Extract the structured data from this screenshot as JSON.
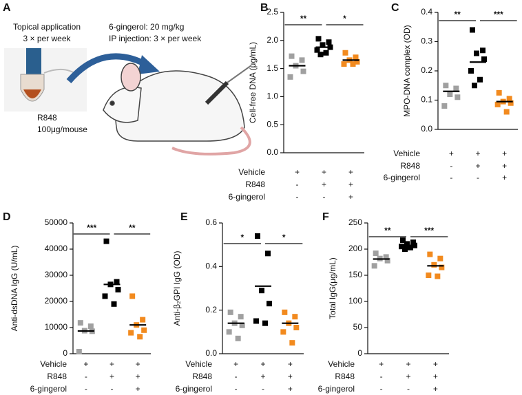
{
  "illustration": {
    "panel": "A",
    "topical": "Topical application",
    "topical_freq": "3 × per week",
    "dose": "6-gingerol: 20 mg/kg",
    "injection": "IP injection: 3 × per week",
    "drug": "R848",
    "drug_dose": "100μg/mouse"
  },
  "chart_data": [
    {
      "type": "dotplot",
      "panel": "B",
      "y_label": "Cell-free DNA (μg/mL)",
      "conditions": [
        {
          "label": "Vehicle",
          "signs": [
            "+",
            "+",
            "+"
          ]
        },
        {
          "label": "R848",
          "signs": [
            "-",
            "+",
            "+"
          ]
        },
        {
          "label": "6-gingerol",
          "signs": [
            "-",
            "-",
            "+"
          ]
        }
      ],
      "series": [
        {
          "color": "#a0a0a0",
          "values": [
            1.72,
            1.65,
            1.55,
            1.45,
            1.35
          ],
          "mean": 1.55
        },
        {
          "color": "#000000",
          "values": [
            2.03,
            1.97,
            1.92,
            1.88,
            1.83,
            1.78,
            1.75
          ],
          "mean": 1.88
        },
        {
          "color": "#f28a1e",
          "values": [
            1.78,
            1.7,
            1.65,
            1.62,
            1.58,
            1.58
          ],
          "mean": 1.65
        }
      ],
      "significance": [
        "**",
        "*"
      ],
      "ylim": [
        0,
        2.5
      ],
      "yticks": [
        {
          "value": 0,
          "label": "0.0"
        },
        0.5,
        {
          "value": 1,
          "label": "1.0"
        },
        1.5,
        {
          "value": 2,
          "label": "2.0"
        },
        2.5
      ]
    },
    {
      "type": "dotplot",
      "panel": "C",
      "y_label": "MPO-DNA complex (OD)",
      "conditions": [
        {
          "label": "Vehicle",
          "signs": [
            "+",
            "+",
            "+"
          ]
        },
        {
          "label": "R848",
          "signs": [
            "-",
            "+",
            "+"
          ]
        },
        {
          "label": "6-gingerol",
          "signs": [
            "-",
            "-",
            "+"
          ]
        }
      ],
      "series": [
        {
          "color": "#a0a0a0",
          "values": [
            0.15,
            0.14,
            0.12,
            0.11,
            0.08
          ],
          "mean": 0.13
        },
        {
          "color": "#000000",
          "values": [
            0.34,
            0.27,
            0.26,
            0.24,
            0.2,
            0.17,
            0.15
          ],
          "mean": 0.23
        },
        {
          "color": "#f28a1e",
          "values": [
            0.125,
            0.105,
            0.095,
            0.09,
            0.085,
            0.06
          ],
          "mean": 0.095
        }
      ],
      "significance": [
        "**",
        "***"
      ],
      "ylim": [
        0,
        0.4
      ],
      "yticks": [
        {
          "value": 0,
          "label": "0.0"
        },
        0.1,
        0.2,
        0.3,
        0.4
      ]
    },
    {
      "type": "dotplot",
      "panel": "D",
      "y_label": "Anti-dsDNA IgG (U/mL)",
      "conditions": [
        {
          "label": "Vehicle",
          "signs": [
            "+",
            "+",
            "+"
          ]
        },
        {
          "label": "R848",
          "signs": [
            "-",
            "+",
            "+"
          ]
        },
        {
          "label": "6-gingerol",
          "signs": [
            "-",
            "-",
            "+"
          ]
        }
      ],
      "series": [
        {
          "color": "#a0a0a0",
          "values": [
            11800,
            10500,
            8800,
            8600,
            800
          ],
          "mean": 8700
        },
        {
          "color": "#000000",
          "values": [
            43000,
            27500,
            26500,
            24500,
            22000,
            19000
          ],
          "mean": 26500
        },
        {
          "color": "#f28a1e",
          "values": [
            22000,
            13000,
            11000,
            9000,
            8000,
            6500
          ],
          "mean": 11000
        }
      ],
      "significance": [
        "***",
        "**"
      ],
      "ylim": [
        0,
        50000
      ],
      "yticks": [
        0,
        10000,
        20000,
        30000,
        40000,
        50000
      ]
    },
    {
      "type": "dotplot",
      "panel": "E",
      "y_label": "Anti-β₂GPI IgG (OD)",
      "conditions": [
        {
          "label": "Vehicle",
          "signs": [
            "+",
            "+",
            "+"
          ]
        },
        {
          "label": "R848",
          "signs": [
            "-",
            "+",
            "+"
          ]
        },
        {
          "label": "6-gingerol",
          "signs": [
            "-",
            "-",
            "+"
          ]
        }
      ],
      "series": [
        {
          "color": "#a0a0a0",
          "values": [
            0.19,
            0.17,
            0.14,
            0.13,
            0.1,
            0.07
          ],
          "mean": 0.14
        },
        {
          "color": "#000000",
          "values": [
            0.54,
            0.46,
            0.29,
            0.23,
            0.15,
            0.14
          ],
          "mean": 0.31
        },
        {
          "color": "#f28a1e",
          "values": [
            0.19,
            0.17,
            0.14,
            0.12,
            0.1,
            0.05
          ],
          "mean": 0.14
        }
      ],
      "significance": [
        "*",
        "*"
      ],
      "ylim": [
        0,
        0.6
      ],
      "yticks": [
        {
          "value": 0,
          "label": "0.0"
        },
        0.2,
        0.4,
        0.6
      ]
    },
    {
      "type": "dotplot",
      "panel": "F",
      "y_label": "Total IgG(μg/mL)",
      "conditions": [
        {
          "label": "Vehicle",
          "signs": [
            "+",
            "+",
            "+"
          ]
        },
        {
          "label": "R848",
          "signs": [
            "-",
            "+",
            "+"
          ]
        },
        {
          "label": "6-gingerol",
          "signs": [
            "-",
            "-",
            "+"
          ]
        }
      ],
      "series": [
        {
          "color": "#a0a0a0",
          "values": [
            192,
            185,
            182,
            178,
            168
          ],
          "mean": 181
        },
        {
          "color": "#000000",
          "values": [
            217,
            213,
            210,
            207,
            205,
            203,
            200
          ],
          "mean": 207
        },
        {
          "color": "#f28a1e",
          "values": [
            190,
            182,
            170,
            165,
            150,
            148
          ],
          "mean": 168
        }
      ],
      "significance": [
        "**",
        "***"
      ],
      "ylim": [
        0,
        250
      ],
      "yticks": [
        0,
        50,
        100,
        150,
        200,
        250
      ]
    }
  ]
}
